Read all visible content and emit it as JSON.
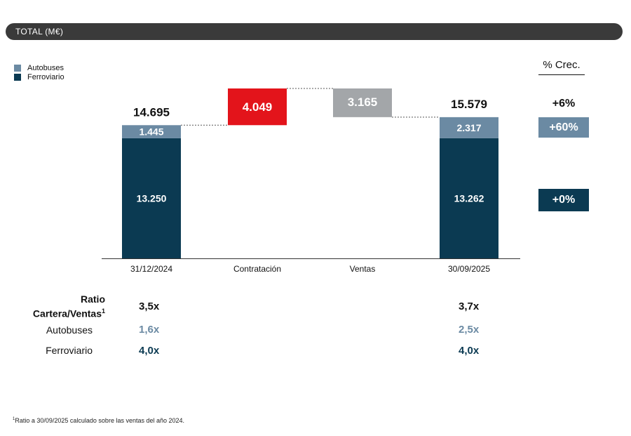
{
  "header": {
    "title": "TOTAL (M€)"
  },
  "legend": [
    {
      "label": "Autobuses",
      "color": "#6b8aa3"
    },
    {
      "label": "Ferroviario",
      "color": "#0b3a52"
    }
  ],
  "growth": {
    "heading": "% Crec.",
    "total": "+6%",
    "autobuses": "+60%",
    "ferroviario": "+0%"
  },
  "colors": {
    "autobuses": "#6b8aa3",
    "ferroviario": "#0b3a52",
    "contratacion": "#e3141b",
    "ventas": "#a3a6a9",
    "axis": "#333333"
  },
  "chart_data": {
    "type": "bar",
    "subtype": "waterfall-stacked",
    "title": "TOTAL (M€)",
    "categories": [
      "31/12/2024",
      "Contratación",
      "Ventas",
      "30/09/2025"
    ],
    "series": [
      {
        "name": "Ferroviario",
        "values": [
          13250,
          null,
          null,
          13262
        ]
      },
      {
        "name": "Autobuses",
        "values": [
          1445,
          null,
          null,
          2317
        ]
      }
    ],
    "totals": [
      14695,
      null,
      null,
      15579
    ],
    "total_labels": [
      "14.695",
      "",
      "",
      "15.579"
    ],
    "segment_labels": {
      "Ferroviario": [
        "13.250",
        "",
        "",
        "13.262"
      ],
      "Autobuses": [
        "1.445",
        "",
        "",
        "2.317"
      ]
    },
    "floating": [
      {
        "category": "Contratación",
        "from": 14695,
        "to": 18744,
        "value": 4049,
        "label": "4.049"
      },
      {
        "category": "Ventas",
        "from": 18744,
        "to": 15579,
        "value": 3165,
        "label": "3.165"
      }
    ],
    "ylim": [
      0,
      18744
    ]
  },
  "ratios": {
    "heading_line1": "Ratio",
    "heading_line2": "Cartera/Ventas",
    "heading_sup": "1",
    "rows": [
      {
        "label": "",
        "start": "3,5x",
        "end": "3,7x"
      },
      {
        "label": "Autobuses",
        "start": "1,6x",
        "end": "2,5x"
      },
      {
        "label": "Ferroviario",
        "start": "4,0x",
        "end": "4,0x"
      }
    ]
  },
  "footnote": {
    "sup": "1",
    "text": "Ratio a 30/09/2025 calculado sobre las ventas del año 2024."
  }
}
